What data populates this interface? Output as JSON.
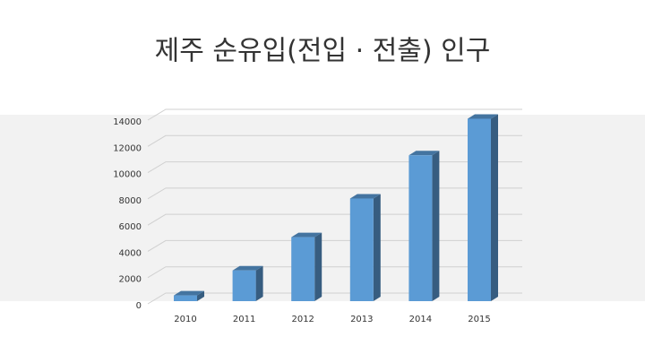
{
  "chart_data": {
    "type": "bar3d",
    "title": "제주 순유입(전입 · 전출) 인구",
    "categories": [
      "2010",
      "2011",
      "2012",
      "2013",
      "2014",
      "2015"
    ],
    "values": [
      437,
      2343,
      4876,
      7823,
      11112,
      13900
    ],
    "color": "#5b9bd5",
    "ylim": [
      0,
      14000
    ],
    "yticks": [
      0,
      2000,
      4000,
      6000,
      8000,
      10000,
      12000,
      14000
    ],
    "grid": true
  }
}
